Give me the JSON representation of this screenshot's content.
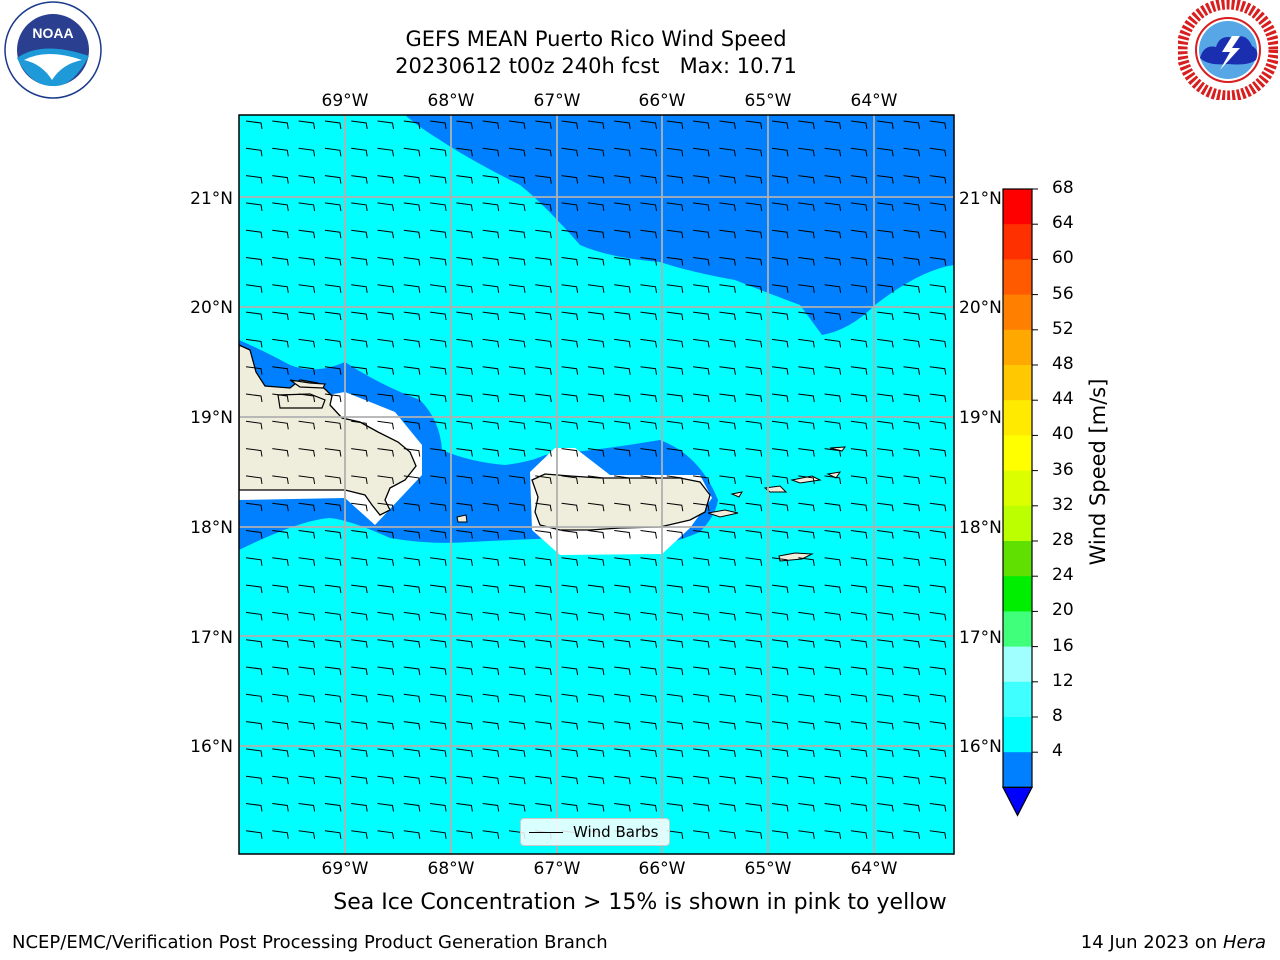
{
  "header": {
    "title_line1": "GEFS MEAN Puerto Rico Wind Speed",
    "title_line2": "20230612 t00z 240h fcst   Max: 10.71"
  },
  "logos": {
    "left": {
      "name": "noaa-logo",
      "text": "NOAA",
      "ring_text": "NATIONAL OCEANIC AND ATMOSPHERIC ADMINISTRATION · U.S. DEPARTMENT OF COMMERCE"
    },
    "right": {
      "name": "nws-logo",
      "ring_text": "NATIONAL WEATHER SERVICE"
    }
  },
  "map": {
    "lon_labels": [
      "69°W",
      "68°W",
      "67°W",
      "66°W",
      "65°W",
      "64°W"
    ],
    "lat_labels": [
      "21°N",
      "20°N",
      "19°N",
      "18°N",
      "17°N",
      "16°N"
    ],
    "legend_label": "Wind Barbs",
    "colors": {
      "ocean_light": "#00ffff",
      "ocean_dark": "#0080ff",
      "land": "#efeedd",
      "grid": "#b0b0b0"
    }
  },
  "colorbar": {
    "title": "Wind Speed [m/s]",
    "ticks": [
      "68",
      "64",
      "60",
      "56",
      "52",
      "48",
      "44",
      "40",
      "36",
      "32",
      "28",
      "24",
      "20",
      "16",
      "12",
      "8",
      "4"
    ],
    "segment_colors": [
      "#ff0000",
      "#ff3000",
      "#ff5a00",
      "#ff8000",
      "#ffa800",
      "#ffc800",
      "#ffea00",
      "#ffff00",
      "#dcff00",
      "#bcff00",
      "#60e000",
      "#00ee00",
      "#40ff7a",
      "#a0ffff",
      "#40ffff",
      "#00ffff",
      "#0080ff"
    ],
    "extend_color": "#0000ff"
  },
  "note": "Sea Ice Concentration > 15% is shown in pink to yellow",
  "footer": {
    "left": "NCEP/EMC/Verification Post Processing Product Generation Branch",
    "date": "14 Jun 2023 on ",
    "host": "Hera"
  }
}
